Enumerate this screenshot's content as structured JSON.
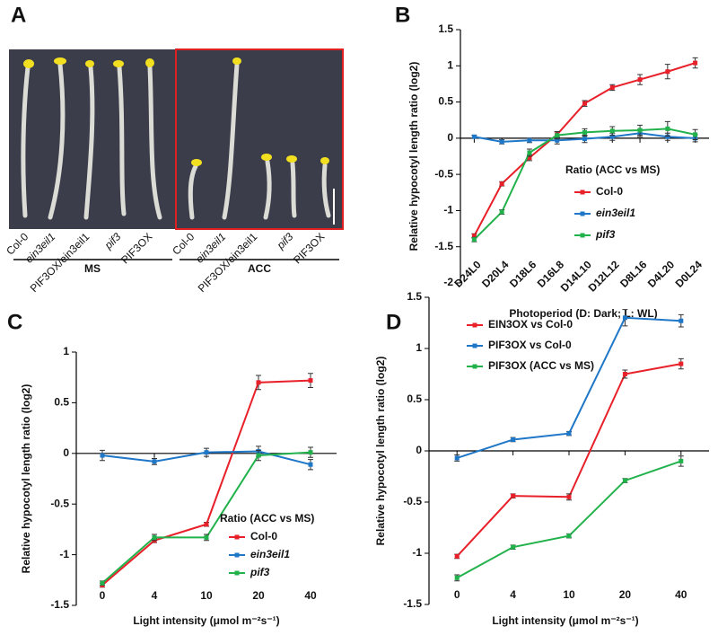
{
  "photo_panel": {
    "panel": "A",
    "labels": [
      "Col-0",
      "ein3eil1",
      "PIF3OX/ein3eil1",
      "pif3",
      "PIF3OX",
      "Col-0",
      "ein3eil1",
      "PIF3OX/ein3eil1",
      "pif3",
      "PIF3OX"
    ],
    "groups": [
      "MS",
      "ACC"
    ]
  },
  "chart_data": [
    {
      "type": "line",
      "panel": "B",
      "x_label": "Photoperiod (D: Dark; L: WL)",
      "y_label": "Relative hypocotyl length ratio (log2)",
      "legend_title": "Ratio (ACC vs MS)",
      "categories": [
        "D24L0",
        "D20L4",
        "D18L6",
        "D16L8",
        "D14L10",
        "D12L12",
        "D8L16",
        "D4L20",
        "D0L24"
      ],
      "ylim": [
        -2,
        1.5
      ],
      "yticks": [
        -2,
        -1.5,
        -1,
        -0.5,
        0,
        0.5,
        1,
        1.5
      ],
      "series": [
        {
          "name": "Col-0",
          "color": "#e8202a",
          "values": [
            -1.35,
            -0.63,
            -0.27,
            0.05,
            0.48,
            0.7,
            0.81,
            0.92,
            1.04
          ],
          "errors": [
            0.03,
            0.03,
            0.04,
            0.04,
            0.04,
            0.04,
            0.07,
            0.1,
            0.07
          ]
        },
        {
          "name": "ein3eil1",
          "color": "#1f77c8",
          "values": [
            0.02,
            -0.05,
            -0.03,
            -0.03,
            -0.01,
            0.02,
            0.07,
            0.02,
            0.0
          ],
          "errors": [
            0.02,
            0.03,
            0.03,
            0.05,
            0.05,
            0.05,
            0.05,
            0.05,
            0.05
          ]
        },
        {
          "name": "pif3",
          "color": "#22b24c",
          "values": [
            -1.4,
            -1.02,
            -0.2,
            0.04,
            0.08,
            0.1,
            0.11,
            0.13,
            0.05
          ],
          "errors": [
            0.03,
            0.03,
            0.05,
            0.05,
            0.05,
            0.06,
            0.07,
            0.1,
            0.07
          ]
        }
      ]
    },
    {
      "type": "line",
      "panel": "C",
      "x_label": "Light intensity (μmol m⁻²s⁻¹)",
      "y_label": "Relative hypocotyl length ratio (log2)",
      "legend_title": "Ratio (ACC vs MS)",
      "categories": [
        "0",
        "4",
        "10",
        "20",
        "40"
      ],
      "ylim": [
        -1.5,
        1
      ],
      "yticks": [
        -1.5,
        -1,
        -0.5,
        0,
        0.5,
        1
      ],
      "series": [
        {
          "name": "Col-0",
          "color": "#e8202a",
          "values": [
            -1.3,
            -0.86,
            -0.7,
            0.7,
            0.72
          ],
          "errors": [
            0.02,
            0.02,
            0.02,
            0.07,
            0.07
          ]
        },
        {
          "name": "ein3eil1",
          "color": "#1f77c8",
          "values": [
            -0.02,
            -0.08,
            0.01,
            0.02,
            -0.11
          ],
          "errors": [
            0.05,
            0.03,
            0.04,
            0.05,
            0.05
          ]
        },
        {
          "name": "pif3",
          "color": "#22b24c",
          "values": [
            -1.28,
            -0.83,
            -0.83,
            -0.02,
            0.01
          ],
          "errors": [
            0.02,
            0.03,
            0.03,
            0.05,
            0.05
          ]
        }
      ]
    },
    {
      "type": "line",
      "panel": "D",
      "x_label": "Light intensity (μmol m⁻²s⁻¹)",
      "y_label": "Relative hypocotyl length ratio (log2)",
      "categories": [
        "0",
        "4",
        "10",
        "20",
        "40"
      ],
      "ylim": [
        -1.5,
        1.5
      ],
      "yticks": [
        -1.5,
        -1,
        -0.5,
        0,
        0.5,
        1,
        1.5
      ],
      "series": [
        {
          "name": "EIN3OX vs Col-0",
          "color": "#e8202a",
          "values": [
            -1.03,
            -0.44,
            -0.45,
            0.75,
            0.85
          ],
          "errors": [
            0.02,
            0.02,
            0.03,
            0.04,
            0.05
          ]
        },
        {
          "name": "PIF3OX vs Col-0",
          "color": "#1f77c8",
          "values": [
            -0.07,
            0.11,
            0.17,
            1.3,
            1.27
          ],
          "errors": [
            0.03,
            0.02,
            0.02,
            0.08,
            0.06
          ]
        },
        {
          "name": "PIF3OX (ACC vs MS)",
          "color": "#22b24c",
          "values": [
            -1.24,
            -0.94,
            -0.83,
            -0.29,
            -0.1
          ],
          "errors": [
            0.03,
            0.02,
            0.02,
            0.02,
            0.05
          ]
        }
      ]
    }
  ]
}
